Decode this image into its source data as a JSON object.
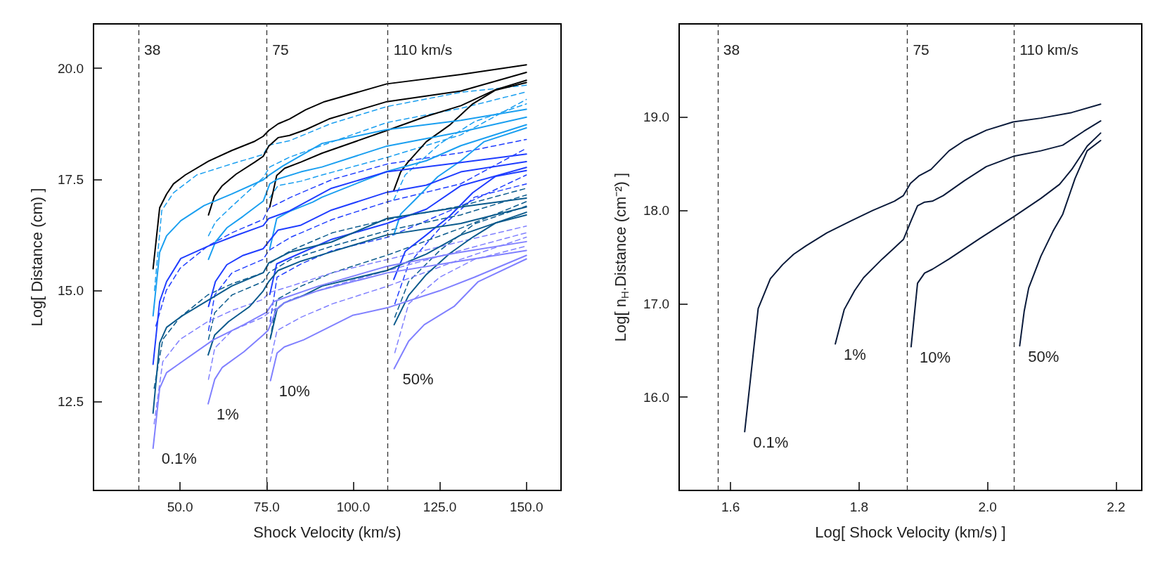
{
  "chart_data": [
    {
      "type": "line",
      "xlabel": "Shock Velocity (km/s)",
      "ylabel": "Log[ Distance (cm) ]",
      "xlim": [
        25,
        160
      ],
      "ylim": [
        10.5,
        21
      ],
      "xticks": [
        {
          "value": 50,
          "label": "50.0"
        },
        {
          "value": 75,
          "label": "75.0"
        },
        {
          "value": 100,
          "label": "100.0"
        },
        {
          "value": 125,
          "label": "125.0"
        },
        {
          "value": 150,
          "label": "150.0"
        }
      ],
      "yticks": [
        {
          "value": 12.5,
          "label": "12.5"
        },
        {
          "value": 15,
          "label": "15.0"
        },
        {
          "value": 17.5,
          "label": "17.5"
        },
        {
          "value": 20,
          "label": "20.0"
        }
      ],
      "grid": false,
      "marker": "none",
      "line_style": "solid",
      "ref_lines": [
        {
          "axis": "x",
          "value": 38,
          "label": "38",
          "color": "#333333",
          "line_style": "dashed"
        },
        {
          "axis": "x",
          "value": 75,
          "label": "75",
          "color": "#333333",
          "line_style": "dashed"
        },
        {
          "axis": "x",
          "value": 110,
          "label": "110 km/s",
          "color": "#333333",
          "line_style": "dashed"
        }
      ],
      "annotations": [
        "0.1%",
        "1%",
        "10%",
        "50%"
      ],
      "series": [
        {
          "color": "#1a9ff0",
          "line_style": "dashed",
          "x": [
            42.6,
            44.7,
            48.1,
            54.8,
            64.9,
            74,
            75.6,
            81.6,
            93.7,
            109.7,
            131.1,
            150
          ],
          "values": [
            15.0,
            16.8,
            17.2,
            17.6,
            17.85,
            18.06,
            18.27,
            18.37,
            18.76,
            19.14,
            19.46,
            19.62
          ]
        },
        {
          "color": "#1a9ff0",
          "line_style": "dashed",
          "x": [
            58.2,
            60.2,
            64.9,
            74,
            75.9,
            81.6,
            93.7,
            109.7,
            131.1,
            150
          ],
          "values": [
            16.23,
            16.54,
            16.89,
            17.54,
            17.78,
            18.0,
            18.34,
            18.78,
            19.1,
            19.47
          ]
        },
        {
          "color": "#1a9ff0",
          "line_style": "dashed",
          "x": [
            75.9,
            78.3,
            84.9,
            91,
            110,
            131,
            150
          ],
          "values": [
            17.09,
            17.36,
            17.46,
            17.6,
            18.0,
            18.5,
            19.3
          ]
        },
        {
          "color": "#1a9ff0",
          "line_style": "dashed",
          "x": [
            111.7,
            115,
            125,
            135,
            150
          ],
          "values": [
            17.04,
            17.6,
            18.3,
            18.8,
            19.2
          ]
        },
        {
          "color": "#1f3dff",
          "line_style": "dashed",
          "x": [
            43,
            46,
            50,
            58,
            65,
            74,
            75.6,
            82,
            94,
            110,
            131,
            150
          ],
          "values": [
            14.2,
            15.0,
            15.5,
            16.0,
            16.3,
            16.6,
            16.85,
            17.1,
            17.5,
            17.85,
            18.1,
            18.4
          ]
        },
        {
          "color": "#1f3dff",
          "line_style": "dashed",
          "x": [
            58.2,
            60,
            65,
            74,
            75.6,
            82,
            94,
            110,
            131,
            150
          ],
          "values": [
            14.1,
            14.9,
            15.4,
            15.7,
            15.9,
            16.2,
            16.6,
            17.0,
            17.4,
            18.2
          ]
        },
        {
          "color": "#1f3dff",
          "line_style": "dashed",
          "x": [
            76,
            78,
            85,
            94,
            110,
            131,
            150
          ],
          "values": [
            14.3,
            15.3,
            15.6,
            15.9,
            16.2,
            16.9,
            17.6
          ]
        },
        {
          "color": "#1f3dff",
          "line_style": "dashed",
          "x": [
            112,
            116,
            125,
            135,
            150
          ],
          "values": [
            14.7,
            15.6,
            16.4,
            17.1,
            17.4
          ]
        },
        {
          "color": "#0a5a8c",
          "line_style": "dashed",
          "x": [
            42.5,
            45,
            50,
            58,
            65,
            74,
            75.6,
            82,
            94,
            110,
            131,
            150
          ],
          "values": [
            12.8,
            13.9,
            14.4,
            14.9,
            15.15,
            15.4,
            15.6,
            15.9,
            16.3,
            16.6,
            16.9,
            17.3
          ]
        },
        {
          "color": "#0a5a8c",
          "line_style": "dashed",
          "x": [
            58.2,
            60,
            65,
            74,
            75.6,
            82,
            94,
            110,
            131,
            150
          ],
          "values": [
            13.9,
            14.5,
            14.9,
            15.2,
            15.4,
            15.7,
            16.0,
            16.35,
            16.7,
            17.15
          ]
        },
        {
          "color": "#0a5a8c",
          "line_style": "dashed",
          "x": [
            76,
            78,
            85,
            94,
            110,
            131,
            150
          ],
          "values": [
            13.9,
            14.8,
            15.1,
            15.4,
            15.8,
            16.4,
            17.0
          ]
        },
        {
          "color": "#0a5a8c",
          "line_style": "dashed",
          "x": [
            112,
            116,
            125,
            135,
            150
          ],
          "values": [
            14.4,
            15.2,
            15.9,
            16.5,
            16.9
          ]
        },
        {
          "color": "#8080ff",
          "line_style": "dashed",
          "x": [
            42.5,
            45,
            50,
            58,
            65,
            74,
            75.6,
            82,
            94,
            110,
            131,
            150
          ],
          "values": [
            12.0,
            13.4,
            13.9,
            14.3,
            14.55,
            14.8,
            14.95,
            15.1,
            15.4,
            15.7,
            16.1,
            16.45
          ]
        },
        {
          "color": "#8080ff",
          "line_style": "dashed",
          "x": [
            58.2,
            60,
            65,
            74,
            75.6,
            82,
            94,
            110,
            131,
            150
          ],
          "values": [
            13.0,
            13.7,
            14.1,
            14.4,
            14.5,
            14.8,
            15.1,
            15.45,
            15.9,
            16.3
          ]
        },
        {
          "color": "#8080ff",
          "line_style": "dashed",
          "x": [
            76,
            78,
            85,
            94,
            110,
            131,
            150
          ],
          "values": [
            13.4,
            14.1,
            14.4,
            14.7,
            15.1,
            15.7,
            16.2
          ]
        },
        {
          "color": "#8080ff",
          "line_style": "dashed",
          "x": [
            112,
            116,
            125,
            135,
            150
          ],
          "values": [
            13.6,
            14.7,
            15.3,
            15.7,
            16.0
          ]
        },
        {
          "color": "#000000",
          "x": [
            42.2,
            44.1,
            46.1,
            48.1,
            51.5,
            58.2,
            64.9,
            71.6,
            74,
            75.6,
            78.3,
            81.6,
            86.3,
            91.7,
            109.7,
            131.1,
            150
          ],
          "values": [
            15.49,
            16.86,
            17.17,
            17.4,
            17.6,
            17.91,
            18.15,
            18.36,
            18.47,
            18.6,
            18.75,
            18.86,
            19.07,
            19.25,
            19.65,
            19.86,
            20.08
          ]
        },
        {
          "color": "#000000",
          "x": [
            58.2,
            59.9,
            62.2,
            66.2,
            71.6,
            74,
            75.6,
            78.3,
            81.6,
            86.3,
            93,
            109.7,
            131.1,
            150
          ],
          "values": [
            16.7,
            17.12,
            17.36,
            17.62,
            17.89,
            18.02,
            18.25,
            18.44,
            18.49,
            18.62,
            18.86,
            19.25,
            19.49,
            19.91
          ]
        },
        {
          "color": "#000000",
          "x": [
            75.9,
            77.9,
            80.2,
            84.9,
            91,
            109.7,
            121.1,
            131.1,
            141.1,
            150
          ],
          "values": [
            16.88,
            17.59,
            17.75,
            17.89,
            18.09,
            18.6,
            18.92,
            19.16,
            19.52,
            19.73
          ]
        },
        {
          "color": "#000000",
          "x": [
            111.7,
            113.7,
            115.7,
            121.1,
            127.8,
            134.5,
            141.1,
            150
          ],
          "values": [
            17.25,
            17.67,
            17.88,
            18.35,
            18.72,
            19.2,
            19.51,
            19.68
          ]
        },
        {
          "color": "#1a9ff0",
          "x": [
            42.2,
            44.1,
            46.1,
            50.2,
            56.9,
            64.9,
            74,
            75.6,
            79.6,
            91,
            109.7,
            131.1,
            150
          ],
          "values": [
            14.43,
            15.86,
            16.23,
            16.57,
            16.91,
            17.17,
            17.49,
            17.59,
            17.8,
            18.31,
            18.62,
            18.83,
            19.08
          ]
        },
        {
          "color": "#1a9ff0",
          "x": [
            58.2,
            60.2,
            63.5,
            68.2,
            74,
            75.9,
            78.3,
            84.9,
            91,
            109.7,
            131.1,
            150
          ],
          "values": [
            15.7,
            16.09,
            16.41,
            16.67,
            17.01,
            17.4,
            17.51,
            17.67,
            17.78,
            18.25,
            18.57,
            18.9
          ]
        },
        {
          "color": "#1a9ff0",
          "x": [
            75.9,
            77.9,
            81.6,
            88.3,
            91,
            109.7,
            121.1,
            131.1,
            150
          ],
          "values": [
            15.94,
            16.62,
            16.78,
            16.99,
            17.1,
            17.68,
            17.92,
            18.26,
            18.73
          ]
        },
        {
          "color": "#1a9ff0",
          "x": [
            111.7,
            113.7,
            117.7,
            124.4,
            131.1,
            137.8,
            150
          ],
          "values": [
            16.25,
            16.72,
            17.03,
            17.56,
            17.92,
            18.35,
            18.66
          ]
        },
        {
          "color": "#1f3dff",
          "x": [
            42.2,
            44.1,
            46.1,
            50.2,
            58.2,
            66.2,
            74,
            75.6,
            81.6,
            93.7,
            109.7,
            131.1,
            150
          ],
          "values": [
            13.34,
            14.75,
            15.2,
            15.72,
            16.0,
            16.24,
            16.46,
            16.62,
            16.79,
            17.3,
            17.67,
            17.88,
            18.07
          ]
        },
        {
          "color": "#1f3dff",
          "x": [
            58.2,
            59.5,
            60.2,
            63.5,
            68.2,
            74,
            75.6,
            78.3,
            84.9,
            93.7,
            109.7,
            121.1,
            131.1,
            150
          ],
          "values": [
            14.64,
            15.0,
            15.2,
            15.58,
            15.79,
            15.94,
            16.1,
            16.36,
            16.47,
            16.81,
            17.21,
            17.37,
            17.67,
            17.9
          ]
        },
        {
          "color": "#1f3dff",
          "x": [
            75.9,
            77.9,
            81.6,
            93.7,
            109.7,
            121.1,
            131.1,
            150
          ],
          "values": [
            14.91,
            15.6,
            15.73,
            16.15,
            16.51,
            16.83,
            17.36,
            17.77
          ]
        },
        {
          "color": "#1f3dff",
          "x": [
            111.7,
            115,
            121.1,
            127.8,
            134.5,
            141.1,
            150
          ],
          "values": [
            15.25,
            15.88,
            16.25,
            16.67,
            17.2,
            17.57,
            17.7
          ]
        },
        {
          "color": "#0a5a8c",
          "x": [
            42.2,
            44.1,
            46.1,
            50.8,
            59.6,
            64.9,
            74,
            75.6,
            81.6,
            93.7,
            109.7,
            131.1,
            150
          ],
          "values": [
            12.24,
            13.82,
            14.17,
            14.44,
            14.85,
            15.1,
            15.4,
            15.62,
            15.86,
            16.09,
            16.62,
            16.88,
            17.08
          ]
        },
        {
          "color": "#0a5a8c",
          "x": [
            58.1,
            60,
            64,
            70.1,
            74,
            75.6,
            78.3,
            84.9,
            93.7,
            109.7,
            131.1,
            150
          ],
          "values": [
            13.55,
            14.0,
            14.3,
            14.64,
            14.99,
            15.2,
            15.45,
            15.66,
            15.87,
            16.25,
            16.51,
            16.88
          ]
        },
        {
          "color": "#0a5a8c",
          "x": [
            76.1,
            78,
            80,
            85.7,
            91,
            109.7,
            121.1,
            131.1,
            150
          ],
          "values": [
            13.93,
            14.58,
            14.72,
            14.89,
            15.1,
            15.45,
            15.82,
            16.25,
            16.76
          ]
        },
        {
          "color": "#0a5a8c",
          "x": [
            111.8,
            116,
            121.1,
            127.8,
            134.5,
            141.1,
            150
          ],
          "values": [
            14.23,
            14.89,
            15.36,
            15.83,
            16.2,
            16.52,
            16.7
          ]
        },
        {
          "color": "#8080ff",
          "x": [
            42.2,
            44.1,
            46.1,
            50.8,
            59.6,
            68.4,
            75,
            77,
            90,
            110,
            130,
            150
          ],
          "values": [
            11.45,
            12.8,
            13.15,
            13.41,
            13.89,
            14.23,
            14.51,
            14.75,
            15.1,
            15.55,
            15.85,
            16.1
          ]
        },
        {
          "color": "#8080ff",
          "x": [
            58.1,
            60,
            62.2,
            68.4,
            74,
            75.4,
            77.9,
            80,
            90,
            110,
            130,
            150
          ],
          "values": [
            12.45,
            13.0,
            13.27,
            13.62,
            14.0,
            14.1,
            14.58,
            14.72,
            15.0,
            15.4,
            15.65,
            15.9
          ]
        },
        {
          "color": "#8080ff",
          "x": [
            76.1,
            78,
            80.1,
            85.7,
            99.8,
            109.8,
            124.8,
            135,
            150
          ],
          "values": [
            12.97,
            13.59,
            13.73,
            13.89,
            14.44,
            14.61,
            14.99,
            15.3,
            15.79
          ]
        },
        {
          "color": "#8080ff",
          "x": [
            111.8,
            116,
            120.5,
            129.1,
            136.1,
            150
          ],
          "values": [
            13.24,
            13.86,
            14.23,
            14.64,
            15.2,
            15.71
          ]
        }
      ]
    },
    {
      "type": "line",
      "xlabel": "Log[ Shock Velocity (km/s) ]",
      "ylabel": "Log[ n$_{H}$.Distance (cm⁻²) ]",
      "xlim": [
        1.52,
        2.24
      ],
      "ylim": [
        15,
        20
      ],
      "xticks": [
        {
          "value": 1.6,
          "label": "1.6"
        },
        {
          "value": 1.8,
          "label": "1.8"
        },
        {
          "value": 2,
          "label": "2.0"
        },
        {
          "value": 2.2,
          "label": "2.2"
        }
      ],
      "yticks": [
        {
          "value": 16,
          "label": "16.0"
        },
        {
          "value": 17,
          "label": "17.0"
        },
        {
          "value": 18,
          "label": "18.0"
        },
        {
          "value": 19,
          "label": "19.0"
        }
      ],
      "grid": false,
      "marker": "none",
      "line_style": "solid",
      "ref_lines": [
        {
          "axis": "x",
          "value": 1.58,
          "color": "#333333",
          "line_style": "dashed"
        },
        {
          "axis": "x",
          "value": 1.875,
          "color": "#333333",
          "line_style": "dashed"
        },
        {
          "axis": "x",
          "value": 2.041,
          "color": "#333333",
          "line_style": "dashed"
        }
      ],
      "annotations": [
        "38",
        "75",
        "110 km/s",
        "0.1%",
        "1%",
        "10%",
        "50%"
      ],
      "series": [
        {
          "color": "#0a1a3a",
          "x": [
            1.622,
            1.643,
            1.662,
            1.681,
            1.698,
            1.717,
            1.75,
            1.788,
            1.821,
            1.855,
            1.869,
            1.88,
            1.893,
            1.912,
            1.94,
            1.964,
            1.998,
            2.04,
            2.083,
            2.131,
            2.176
          ],
          "values": [
            15.63,
            16.95,
            17.27,
            17.42,
            17.53,
            17.62,
            17.76,
            17.89,
            18.0,
            18.1,
            18.16,
            18.29,
            18.37,
            18.44,
            18.64,
            18.75,
            18.86,
            18.95,
            18.99,
            19.05,
            19.14
          ]
        },
        {
          "color": "#0a1a3a",
          "x": [
            1.763,
            1.777,
            1.793,
            1.807,
            1.836,
            1.855,
            1.869,
            1.881,
            1.891,
            1.902,
            1.914,
            1.931,
            1.964,
            1.998,
            2.04,
            2.083,
            2.117,
            2.15,
            2.176
          ],
          "values": [
            16.57,
            16.94,
            17.14,
            17.28,
            17.48,
            17.6,
            17.69,
            17.89,
            18.05,
            18.09,
            18.1,
            18.16,
            18.32,
            18.47,
            18.58,
            18.64,
            18.7,
            18.85,
            18.96
          ]
        },
        {
          "color": "#0a1a3a",
          "x": [
            1.881,
            1.891,
            1.902,
            1.914,
            1.94,
            1.988,
            2.04,
            2.083,
            2.112,
            2.131,
            2.155,
            2.176
          ],
          "values": [
            16.54,
            17.22,
            17.33,
            17.37,
            17.48,
            17.7,
            17.93,
            18.13,
            18.28,
            18.44,
            18.69,
            18.83
          ]
        },
        {
          "color": "#0a1a3a",
          "x": [
            2.05,
            2.057,
            2.064,
            2.083,
            2.102,
            2.117,
            2.136,
            2.155,
            2.176
          ],
          "values": [
            16.55,
            16.92,
            17.17,
            17.51,
            17.78,
            17.96,
            18.34,
            18.64,
            18.75
          ]
        }
      ]
    }
  ]
}
